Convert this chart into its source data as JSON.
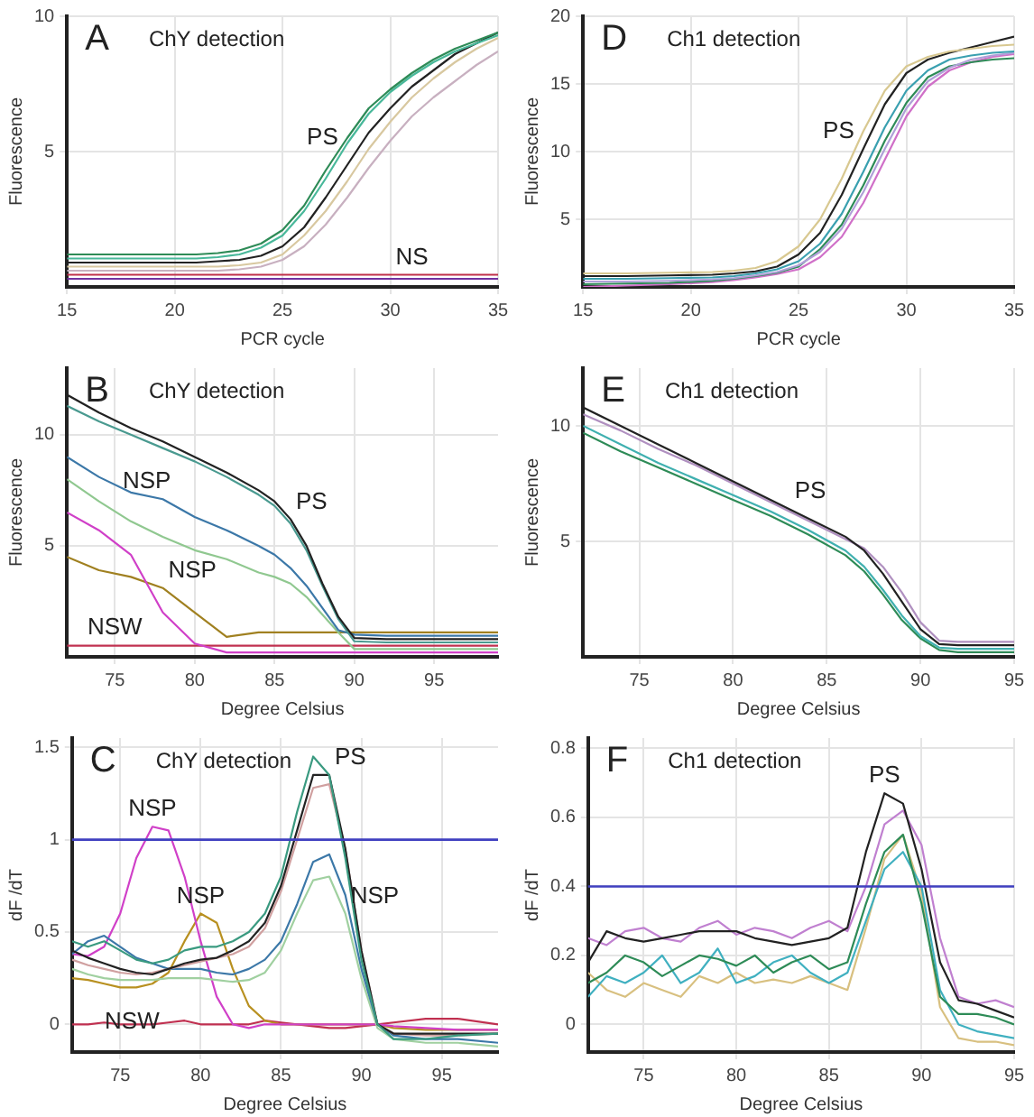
{
  "chart_data": [
    {
      "type": "line",
      "title": "ChY detection",
      "xlabel": "PCR cycle",
      "ylabel": "Fluorescence",
      "xlim": [
        15,
        35
      ],
      "ylim": [
        0,
        10
      ],
      "xticks": [
        15,
        20,
        25,
        30,
        35
      ],
      "yticks": [
        5,
        10
      ],
      "grid": true,
      "legend": false,
      "marker": "none",
      "line_style": "solid",
      "annotations": [
        "A",
        {
          "text": "PS",
          "x": 28,
          "y": 5.5
        },
        {
          "text": "NS",
          "x": 31,
          "y": 0.45
        }
      ],
      "x": [
        15,
        17,
        19,
        21,
        22,
        23,
        24,
        25,
        26,
        27,
        28,
        29,
        30,
        31,
        32,
        33,
        34,
        35
      ],
      "series": [
        {
          "color": "#2e8b57",
          "values": [
            1.2,
            1.2,
            1.2,
            1.2,
            1.25,
            1.35,
            1.6,
            2.1,
            3.0,
            4.3,
            5.5,
            6.6,
            7.3,
            7.9,
            8.4,
            8.8,
            9.1,
            9.4
          ]
        },
        {
          "color": "#48b89a",
          "values": [
            1.05,
            1.05,
            1.05,
            1.05,
            1.1,
            1.2,
            1.45,
            1.9,
            2.8,
            4.0,
            5.3,
            6.4,
            7.2,
            7.8,
            8.3,
            8.7,
            9.0,
            9.3
          ]
        },
        {
          "color": "#222222",
          "values": [
            0.9,
            0.9,
            0.9,
            0.9,
            0.95,
            1.0,
            1.15,
            1.5,
            2.2,
            3.3,
            4.5,
            5.7,
            6.6,
            7.4,
            8.0,
            8.6,
            9.0,
            9.4
          ]
        },
        {
          "color": "#d8c8a0",
          "values": [
            0.75,
            0.75,
            0.75,
            0.75,
            0.75,
            0.8,
            0.9,
            1.2,
            1.9,
            2.8,
            3.9,
            5.1,
            6.1,
            7.0,
            7.7,
            8.3,
            8.8,
            9.2
          ]
        },
        {
          "color": "#c8b0c0",
          "values": [
            0.6,
            0.6,
            0.6,
            0.6,
            0.6,
            0.65,
            0.75,
            1.0,
            1.5,
            2.3,
            3.3,
            4.4,
            5.4,
            6.3,
            7.0,
            7.6,
            8.2,
            8.7
          ]
        },
        {
          "color": "#c0304a",
          "values": [
            0.45,
            0.45,
            0.45,
            0.45,
            0.45,
            0.45,
            0.45,
            0.45,
            0.45,
            0.45,
            0.45,
            0.45,
            0.45,
            0.45,
            0.45,
            0.45,
            0.45,
            0.45
          ]
        },
        {
          "color": "#7030a0",
          "values": [
            0.3,
            0.3,
            0.3,
            0.3,
            0.3,
            0.3,
            0.3,
            0.3,
            0.3,
            0.3,
            0.3,
            0.3,
            0.3,
            0.3,
            0.3,
            0.3,
            0.3,
            0.3
          ]
        }
      ]
    },
    {
      "type": "line",
      "title": "Ch1 detection",
      "xlabel": "PCR cycle",
      "ylabel": "Fluorescence",
      "xlim": [
        15,
        35
      ],
      "ylim": [
        0,
        20
      ],
      "xticks": [
        15,
        20,
        25,
        30,
        35
      ],
      "yticks": [
        5,
        10,
        15,
        20
      ],
      "grid": true,
      "legend": false,
      "marker": "none",
      "line_style": "solid",
      "annotations": [
        "D",
        {
          "text": "PS",
          "x": 28,
          "y": 11.5
        }
      ],
      "x": [
        15,
        17,
        19,
        21,
        22,
        23,
        24,
        25,
        26,
        27,
        28,
        29,
        30,
        31,
        32,
        33,
        34,
        35
      ],
      "series": [
        {
          "color": "#d8c890",
          "values": [
            1.0,
            1.0,
            1.05,
            1.1,
            1.2,
            1.4,
            1.9,
            3.0,
            5.0,
            8.0,
            11.5,
            14.5,
            16.3,
            17.0,
            17.4,
            17.6,
            17.8,
            17.9
          ]
        },
        {
          "color": "#222222",
          "values": [
            0.8,
            0.8,
            0.85,
            0.9,
            1.0,
            1.15,
            1.5,
            2.4,
            4.0,
            6.8,
            10.2,
            13.5,
            15.8,
            16.8,
            17.3,
            17.7,
            18.1,
            18.5
          ]
        },
        {
          "color": "#3aa0b0",
          "values": [
            0.6,
            0.6,
            0.65,
            0.7,
            0.8,
            1.0,
            1.3,
            1.9,
            3.2,
            5.4,
            8.5,
            11.8,
            14.5,
            16.0,
            16.8,
            17.1,
            17.3,
            17.4
          ]
        },
        {
          "color": "#b0a0d8",
          "values": [
            0.4,
            0.4,
            0.45,
            0.55,
            0.65,
            0.85,
            1.1,
            1.6,
            2.6,
            4.3,
            7.0,
            10.2,
            13.2,
            15.2,
            16.2,
            16.8,
            17.1,
            17.3
          ]
        },
        {
          "color": "#2e8b57",
          "values": [
            0.2,
            0.25,
            0.3,
            0.45,
            0.6,
            0.8,
            1.05,
            1.5,
            2.8,
            4.6,
            7.5,
            10.8,
            13.6,
            15.5,
            16.3,
            16.6,
            16.8,
            16.9
          ]
        },
        {
          "color": "#d070c8",
          "values": [
            0.0,
            0.1,
            0.2,
            0.35,
            0.5,
            0.7,
            0.95,
            1.3,
            2.2,
            3.7,
            6.2,
            9.4,
            12.6,
            14.8,
            16.0,
            16.6,
            17.0,
            17.2
          ]
        }
      ]
    },
    {
      "type": "line",
      "title": "ChY detection",
      "xlabel": "Degree Celsius",
      "ylabel": "Fluorescence",
      "xlim": [
        72,
        99
      ],
      "ylim": [
        0,
        13
      ],
      "xticks": [
        75,
        80,
        85,
        90,
        95
      ],
      "yticks": [
        5,
        10
      ],
      "grid": true,
      "legend": false,
      "marker": "none",
      "line_style": "solid",
      "annotations": [
        "B",
        {
          "text": "PS",
          "x": 86,
          "y": 6.2
        },
        {
          "text": "NSP",
          "x": 77,
          "y": 7.1
        },
        {
          "text": "NSP",
          "x": 78,
          "y": 3.1
        },
        {
          "text": "NSW",
          "x": 75,
          "y": 0.55
        }
      ],
      "x": [
        72,
        74,
        76,
        78,
        80,
        82,
        84,
        85,
        86,
        87,
        88,
        89,
        90,
        92,
        95,
        99
      ],
      "series": [
        {
          "color": "#222222",
          "values": [
            11.8,
            11.0,
            10.3,
            9.7,
            9.0,
            8.3,
            7.5,
            7.0,
            6.2,
            5.0,
            3.3,
            1.8,
            0.85,
            0.8,
            0.8,
            0.8
          ]
        },
        {
          "color": "#4a9a90",
          "values": [
            11.3,
            10.6,
            10.0,
            9.4,
            8.8,
            8.1,
            7.3,
            6.8,
            6.0,
            4.8,
            3.2,
            1.7,
            0.7,
            0.65,
            0.65,
            0.65
          ]
        },
        {
          "color": "#3c78a8",
          "values": [
            9.0,
            8.1,
            7.4,
            7.1,
            6.3,
            5.7,
            5.0,
            4.6,
            4.0,
            3.2,
            2.2,
            1.2,
            1.0,
            0.95,
            0.95,
            0.95
          ]
        },
        {
          "color": "#90c890",
          "values": [
            8.0,
            7.0,
            6.1,
            5.4,
            4.8,
            4.4,
            3.8,
            3.6,
            3.3,
            2.7,
            1.9,
            1.1,
            0.35,
            0.35,
            0.35,
            0.35
          ]
        },
        {
          "color": "#d040c8",
          "values": [
            6.5,
            5.7,
            4.6,
            2.0,
            0.6,
            0.2,
            0.2,
            0.2,
            0.2,
            0.2,
            0.2,
            0.2,
            0.2,
            0.2,
            0.2,
            0.2
          ]
        },
        {
          "color": "#a08020",
          "values": [
            4.5,
            3.9,
            3.6,
            3.1,
            2.0,
            0.9,
            1.1,
            1.1,
            1.1,
            1.1,
            1.1,
            1.1,
            1.1,
            1.1,
            1.1,
            1.1
          ]
        },
        {
          "color": "#c03050",
          "values": [
            0.5,
            0.5,
            0.5,
            0.5,
            0.5,
            0.5,
            0.5,
            0.5,
            0.5,
            0.5,
            0.5,
            0.5,
            0.5,
            0.5,
            0.5,
            0.5
          ]
        }
      ]
    },
    {
      "type": "line",
      "title": "Ch1 detection",
      "xlabel": "Degree Celsius",
      "ylabel": "Fluorescence",
      "xlim": [
        72,
        95
      ],
      "ylim": [
        0,
        12.5
      ],
      "xticks": [
        75,
        80,
        85,
        90,
        95
      ],
      "yticks": [
        5,
        10
      ],
      "grid": true,
      "legend": false,
      "marker": "none",
      "line_style": "solid",
      "annotations": [
        "E",
        {
          "text": "PS",
          "x": 83,
          "y": 6.4
        }
      ],
      "x": [
        72,
        74,
        76,
        78,
        80,
        82,
        83,
        84,
        86,
        87,
        88,
        89,
        90,
        91,
        92,
        95
      ],
      "series": [
        {
          "color": "#222222",
          "values": [
            10.8,
            10.0,
            9.2,
            8.4,
            7.6,
            6.8,
            6.4,
            6.0,
            5.2,
            4.6,
            3.6,
            2.4,
            1.2,
            0.55,
            0.5,
            0.5
          ]
        },
        {
          "color": "#b090c0",
          "values": [
            10.5,
            9.8,
            9.0,
            8.3,
            7.5,
            6.7,
            6.3,
            5.9,
            5.1,
            4.7,
            3.9,
            2.8,
            1.5,
            0.7,
            0.65,
            0.65
          ]
        },
        {
          "color": "#40b0b0",
          "values": [
            10.0,
            9.2,
            8.4,
            7.7,
            7.0,
            6.3,
            5.9,
            5.5,
            4.6,
            3.9,
            2.9,
            1.8,
            0.9,
            0.4,
            0.35,
            0.35
          ]
        },
        {
          "color": "#2e8b57",
          "values": [
            9.7,
            8.9,
            8.2,
            7.5,
            6.8,
            6.1,
            5.7,
            5.3,
            4.4,
            3.7,
            2.7,
            1.6,
            0.8,
            0.3,
            0.2,
            0.2
          ]
        }
      ]
    },
    {
      "type": "line",
      "title": "ChY detection",
      "xlabel": "Degree Celsius",
      "ylabel": "dF /dT",
      "xlim": [
        72,
        98.5
      ],
      "ylim": [
        -0.15,
        1.55
      ],
      "xticks": [
        75,
        80,
        85,
        90,
        95
      ],
      "yticks": [
        0,
        0.5,
        1,
        1.5
      ],
      "grid": true,
      "legend": false,
      "marker": "none",
      "line_style": "solid",
      "ref_lines": [
        {
          "axis": "y",
          "value": 1,
          "color": "#4040c0"
        }
      ],
      "annotations": [
        "C",
        {
          "text": "PS",
          "x": 88,
          "y": 1.35
        },
        {
          "text": "NSP",
          "x": 77,
          "y": 1.07
        },
        {
          "text": "NSP",
          "x": 80,
          "y": 0.6
        },
        {
          "text": "NSP",
          "x": 89,
          "y": 0.6
        },
        {
          "text": "NSW",
          "x": 78,
          "y": 0.01
        }
      ],
      "x": [
        72,
        73,
        74,
        75,
        76,
        77,
        78,
        79,
        80,
        81,
        82,
        83,
        84,
        85,
        86,
        87,
        88,
        89,
        90,
        91,
        92,
        94,
        96,
        98.5
      ],
      "series": [
        {
          "color": "#3a9a80",
          "values": [
            0.45,
            0.42,
            0.45,
            0.4,
            0.35,
            0.33,
            0.35,
            0.4,
            0.42,
            0.42,
            0.45,
            0.5,
            0.6,
            0.8,
            1.15,
            1.45,
            1.35,
            0.9,
            0.35,
            0.0,
            -0.08,
            -0.08,
            -0.06,
            -0.05
          ]
        },
        {
          "color": "#222222",
          "values": [
            0.4,
            0.36,
            0.33,
            0.3,
            0.28,
            0.27,
            0.3,
            0.33,
            0.35,
            0.36,
            0.4,
            0.45,
            0.55,
            0.75,
            1.05,
            1.35,
            1.35,
            0.95,
            0.4,
            0.0,
            -0.05,
            -0.05,
            -0.05,
            -0.05
          ]
        },
        {
          "color": "#d0a0a0",
          "values": [
            0.35,
            0.32,
            0.3,
            0.28,
            0.27,
            0.28,
            0.3,
            0.32,
            0.34,
            0.36,
            0.38,
            0.42,
            0.52,
            0.72,
            1.0,
            1.28,
            1.3,
            0.95,
            0.4,
            0.0,
            -0.05,
            -0.06,
            -0.06,
            -0.05
          ]
        },
        {
          "color": "#3c78a8",
          "values": [
            0.38,
            0.45,
            0.48,
            0.42,
            0.36,
            0.33,
            0.3,
            0.3,
            0.3,
            0.28,
            0.27,
            0.3,
            0.35,
            0.45,
            0.65,
            0.88,
            0.92,
            0.7,
            0.3,
            0.0,
            -0.06,
            -0.08,
            -0.08,
            -0.1
          ]
        },
        {
          "color": "#a0d0a0",
          "values": [
            0.3,
            0.27,
            0.25,
            0.24,
            0.24,
            0.24,
            0.25,
            0.25,
            0.25,
            0.24,
            0.23,
            0.24,
            0.28,
            0.4,
            0.6,
            0.78,
            0.8,
            0.6,
            0.25,
            -0.02,
            -0.08,
            -0.1,
            -0.1,
            -0.12
          ]
        },
        {
          "color": "#d040c8",
          "values": [
            0.38,
            0.37,
            0.42,
            0.6,
            0.9,
            1.07,
            1.05,
            0.8,
            0.45,
            0.15,
            0.0,
            -0.02,
            0.0,
            0.0,
            0.0,
            0.0,
            0.0,
            0.0,
            0.0,
            0.0,
            -0.01,
            -0.02,
            -0.03,
            -0.03
          ]
        },
        {
          "color": "#b89020",
          "values": [
            0.25,
            0.24,
            0.22,
            0.2,
            0.2,
            0.22,
            0.28,
            0.45,
            0.6,
            0.55,
            0.3,
            0.1,
            0.02,
            0.0,
            0.0,
            0.0,
            0.0,
            0.0,
            0.0,
            0.0,
            -0.02,
            -0.03,
            -0.03,
            -0.03
          ]
        },
        {
          "color": "#c03050",
          "values": [
            0.0,
            0.0,
            0.01,
            0.0,
            0.0,
            0.0,
            0.01,
            0.02,
            0.0,
            0.0,
            0.0,
            0.0,
            0.02,
            0.01,
            0.0,
            -0.01,
            -0.02,
            -0.02,
            -0.01,
            0.0,
            0.01,
            0.03,
            0.03,
            0.0
          ]
        }
      ]
    },
    {
      "type": "line",
      "title": "Ch1 detection",
      "xlabel": "Degree Celsius",
      "ylabel": "dF /dT",
      "xlim": [
        72,
        95
      ],
      "ylim": [
        -0.08,
        0.83
      ],
      "xticks": [
        75,
        80,
        85,
        90,
        95
      ],
      "yticks": [
        0,
        0.2,
        0.4,
        0.6,
        0.8
      ],
      "grid": true,
      "legend": false,
      "marker": "none",
      "line_style": "solid",
      "ref_lines": [
        {
          "axis": "y",
          "value": 0.4,
          "color": "#4040c0"
        }
      ],
      "annotations": [
        "F",
        {
          "text": "PS",
          "x": 88,
          "y": 0.67
        }
      ],
      "x": [
        72,
        73,
        74,
        75,
        76,
        77,
        78,
        79,
        80,
        81,
        82,
        83,
        84,
        85,
        86,
        87,
        88,
        89,
        90,
        91,
        92,
        93,
        94,
        95
      ],
      "series": [
        {
          "color": "#222222",
          "values": [
            0.18,
            0.27,
            0.25,
            0.24,
            0.25,
            0.26,
            0.27,
            0.27,
            0.27,
            0.25,
            0.24,
            0.23,
            0.24,
            0.25,
            0.28,
            0.5,
            0.67,
            0.64,
            0.45,
            0.18,
            0.07,
            0.06,
            0.04,
            0.02
          ]
        },
        {
          "color": "#c080d0",
          "values": [
            0.25,
            0.23,
            0.27,
            0.28,
            0.25,
            0.24,
            0.28,
            0.3,
            0.26,
            0.28,
            0.27,
            0.25,
            0.28,
            0.3,
            0.27,
            0.4,
            0.58,
            0.62,
            0.52,
            0.25,
            0.08,
            0.06,
            0.07,
            0.05
          ]
        },
        {
          "color": "#2e8b57",
          "values": [
            0.12,
            0.15,
            0.2,
            0.18,
            0.14,
            0.17,
            0.2,
            0.19,
            0.17,
            0.2,
            0.15,
            0.18,
            0.2,
            0.16,
            0.18,
            0.35,
            0.5,
            0.55,
            0.35,
            0.08,
            0.03,
            0.03,
            0.02,
            0.0
          ]
        },
        {
          "color": "#40b0c0",
          "values": [
            0.08,
            0.14,
            0.12,
            0.15,
            0.2,
            0.12,
            0.15,
            0.22,
            0.12,
            0.14,
            0.18,
            0.2,
            0.15,
            0.12,
            0.15,
            0.3,
            0.45,
            0.5,
            0.4,
            0.1,
            0.0,
            -0.02,
            -0.03,
            -0.04
          ]
        },
        {
          "color": "#d8c080",
          "values": [
            0.15,
            0.1,
            0.08,
            0.12,
            0.1,
            0.08,
            0.14,
            0.12,
            0.15,
            0.12,
            0.13,
            0.12,
            0.14,
            0.12,
            0.1,
            0.28,
            0.48,
            0.55,
            0.38,
            0.05,
            -0.04,
            -0.05,
            -0.05,
            -0.06
          ]
        }
      ]
    }
  ]
}
